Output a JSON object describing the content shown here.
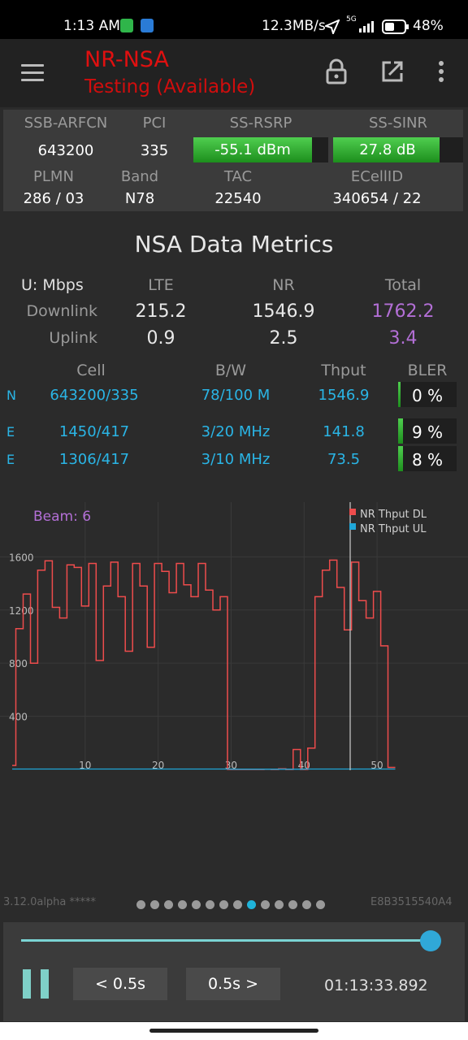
{
  "status_bar": {
    "time": "1:13 AM",
    "net_speed": "12.3MB/s",
    "network_type": "5G",
    "battery": "48%"
  },
  "app_bar": {
    "title": "NR-NSA",
    "subtitle": "Testing (Available)",
    "icons": [
      "menu-icon",
      "lock-icon",
      "open-external-icon",
      "more-vert-icon"
    ],
    "title_color": "#e01010"
  },
  "cell_info": {
    "labels": {
      "ssb_arfcn": "SSB-ARFCN",
      "pci": "PCI",
      "ss_rsrp": "SS-RSRP",
      "ss_sinr": "SS-SINR",
      "plmn": "PLMN",
      "band": "Band",
      "tac": "TAC",
      "ecellid": "ECellID"
    },
    "values": {
      "ssb_arfcn": "643200",
      "pci": "335",
      "ss_rsrp": "-55.1 dBm",
      "ss_sinr": "27.8 dB",
      "plmn": "286 / 03",
      "band": "N78",
      "tac": "22540",
      "ecellid": "340654 / 22"
    },
    "rsrp_fill": 0.88,
    "sinr_fill": 0.82
  },
  "metrics": {
    "title": "NSA Data Metrics",
    "unit_label": "U: Mbps",
    "col_lte": "LTE",
    "col_nr": "NR",
    "col_total": "Total",
    "downlink_label": "Downlink",
    "uplink_label": "Uplink",
    "downlink": {
      "lte": "215.2",
      "nr": "1546.9",
      "total": "1762.2"
    },
    "uplink": {
      "lte": "0.9",
      "nr": "2.5",
      "total": "3.4"
    }
  },
  "carriers": {
    "headers": {
      "cell": "Cell",
      "bw": "B/W",
      "thput": "Thput",
      "bler": "BLER"
    },
    "rows": [
      {
        "type": "N",
        "cell": "643200/335",
        "bw": "78/100 M",
        "thput": "1546.9",
        "bler": "0 %",
        "bler_fill": 0.0
      },
      {
        "type": "E",
        "cell": "1450/417",
        "bw": "3/20 MHz",
        "thput": "141.8",
        "bler": "9 %",
        "bler_fill": 0.09
      },
      {
        "type": "E",
        "cell": "1306/417",
        "bw": "3/10 MHz",
        "thput": "73.5",
        "bler": "8 %",
        "bler_fill": 0.08
      }
    ]
  },
  "chart_data": {
    "type": "line",
    "annotation": "Beam: 6",
    "legend_position": "top-right",
    "ylim": [
      0,
      1700
    ],
    "xlim": [
      0,
      54
    ],
    "y_ticks": [
      "1600",
      "1200",
      "800",
      "400"
    ],
    "x_ticks": [
      "10",
      "20",
      "30",
      "40",
      "50"
    ],
    "grid": true,
    "series": [
      {
        "name": "NR Thput DL",
        "color": "#ee4c4c",
        "values": [
          [
            0,
            30
          ],
          [
            0.5,
            1060
          ],
          [
            1.5,
            1320
          ],
          [
            2.5,
            800
          ],
          [
            3.5,
            1500
          ],
          [
            4.5,
            1570
          ],
          [
            5.5,
            1220
          ],
          [
            6.5,
            1140
          ],
          [
            7.5,
            1540
          ],
          [
            8.5,
            1520
          ],
          [
            9.5,
            1230
          ],
          [
            10.5,
            1550
          ],
          [
            11.5,
            820
          ],
          [
            12.5,
            1380
          ],
          [
            13.5,
            1560
          ],
          [
            14.5,
            1300
          ],
          [
            15.5,
            890
          ],
          [
            16.5,
            1550
          ],
          [
            17.5,
            1380
          ],
          [
            18.5,
            920
          ],
          [
            19.5,
            1550
          ],
          [
            20.5,
            1490
          ],
          [
            21.5,
            1330
          ],
          [
            22.5,
            1550
          ],
          [
            23.5,
            1390
          ],
          [
            24.5,
            1300
          ],
          [
            25.5,
            1550
          ],
          [
            26.5,
            1350
          ],
          [
            27.5,
            1200
          ],
          [
            28.5,
            1300
          ],
          [
            29.5,
            0
          ],
          [
            30.5,
            0
          ],
          [
            34.5,
            2
          ],
          [
            35.5,
            0
          ],
          [
            36.5,
            5
          ],
          [
            37.5,
            0
          ],
          [
            38.5,
            150
          ],
          [
            39.5,
            0
          ],
          [
            40.5,
            160
          ],
          [
            41.5,
            1300
          ],
          [
            42.5,
            1500
          ],
          [
            43.5,
            1575
          ],
          [
            44.5,
            1370
          ],
          [
            45.5,
            1050
          ],
          [
            46.5,
            1560
          ],
          [
            47.5,
            1270
          ],
          [
            48.5,
            1140
          ],
          [
            49.5,
            1340
          ],
          [
            50.5,
            930
          ],
          [
            51.5,
            15
          ],
          [
            52.5,
            15
          ]
        ]
      },
      {
        "name": "NR Thput UL",
        "color": "#1fa6d8",
        "values": [
          [
            0,
            3
          ],
          [
            10,
            3
          ],
          [
            20,
            3
          ],
          [
            30,
            2
          ],
          [
            40,
            3
          ],
          [
            50,
            3
          ],
          [
            52.5,
            3
          ]
        ]
      }
    ]
  },
  "footer": {
    "version": "3.12.0alpha *****",
    "device_id": "E8B3515540A4",
    "page_count": 14,
    "active_page": 8,
    "progress": 0.98,
    "pause_icon": "pause-icon",
    "back_label": "< 0.5s",
    "fwd_label": "0.5s >",
    "timestamp": "01:13:33.892"
  }
}
